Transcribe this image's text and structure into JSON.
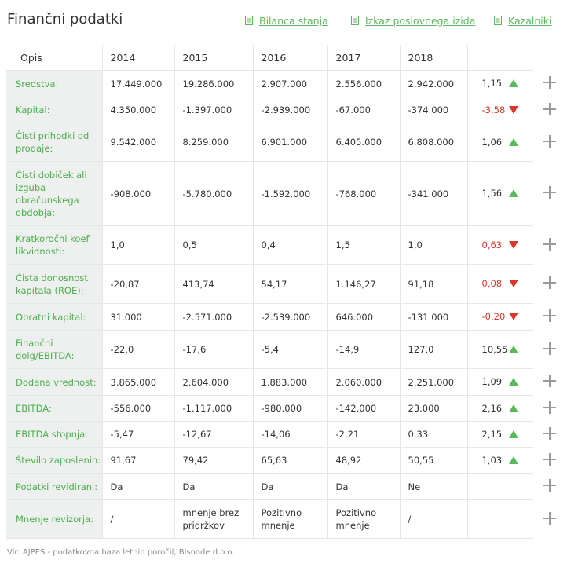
{
  "header": {
    "title": "Finančni podatki",
    "links": [
      {
        "label": "Bilanca stanja",
        "icon": "document-icon"
      },
      {
        "label": "Izkaz poslovnega izida",
        "icon": "document-icon"
      },
      {
        "label": "Kazalniki",
        "icon": "document-icon"
      }
    ]
  },
  "colors": {
    "accent": "#5cb85c",
    "negative": "#d9372b",
    "label_bg": "#eef0ef"
  },
  "table": {
    "columns": [
      "Opis",
      "2014",
      "2015",
      "2016",
      "2017",
      "2018"
    ],
    "rows": [
      {
        "label": "Sredstva:",
        "values": [
          "17.449.000",
          "19.286.000",
          "2.907.000",
          "2.556.000",
          "2.942.000"
        ],
        "index": "1,15",
        "trend": "up"
      },
      {
        "label": "Kapital:",
        "values": [
          "4.350.000",
          "-1.397.000",
          "-2.939.000",
          "-67.000",
          "-374.000"
        ],
        "index": "-3,58",
        "trend": "down"
      },
      {
        "label": "Čisti prihodki od prodaje:",
        "values": [
          "9.542.000",
          "8.259.000",
          "6.901.000",
          "6.405.000",
          "6.808.000"
        ],
        "index": "1,06",
        "trend": "up"
      },
      {
        "label": "Čisti dobiček ali izguba obračunskega obdobja:",
        "values": [
          "-908.000",
          "-5.780.000",
          "-1.592.000",
          "-768.000",
          "-341.000"
        ],
        "index": "1,56",
        "trend": "up"
      },
      {
        "label": "Kratkoročni koef. likvidnosti:",
        "values": [
          "1,0",
          "0,5",
          "0,4",
          "1,5",
          "1,0"
        ],
        "index": "0,63",
        "trend": "down"
      },
      {
        "label": "Čista donosnost kapitala (ROE):",
        "values": [
          "-20,87",
          "413,74",
          "54,17",
          "1.146,27",
          "91,18"
        ],
        "index": "0,08",
        "trend": "down"
      },
      {
        "label": "Obratni kapital:",
        "values": [
          "31.000",
          "-2.571.000",
          "-2.539.000",
          "646.000",
          "-131.000"
        ],
        "index": "-0,20",
        "trend": "down"
      },
      {
        "label": "Finančni dolg/EBITDA:",
        "values": [
          "-22,0",
          "-17,6",
          "-5,4",
          "-14,9",
          "127,0"
        ],
        "index": "10,55",
        "trend": "up"
      },
      {
        "label": "Dodana vrednost:",
        "values": [
          "3.865.000",
          "2.604.000",
          "1.883.000",
          "2.060.000",
          "2.251.000"
        ],
        "index": "1,09",
        "trend": "up"
      },
      {
        "label": "EBITDA:",
        "values": [
          "-556.000",
          "-1.117.000",
          "-980.000",
          "-142.000",
          "23.000"
        ],
        "index": "2,16",
        "trend": "up"
      },
      {
        "label": "EBITDA stopnja:",
        "values": [
          "-5,47",
          "-12,67",
          "-14,06",
          "-2,21",
          "0,33"
        ],
        "index": "2,15",
        "trend": "up"
      },
      {
        "label": "Število zaposlenih:",
        "values": [
          "91,67",
          "79,42",
          "65,63",
          "48,92",
          "50,55"
        ],
        "index": "1,03",
        "trend": "up"
      },
      {
        "label": "Podatki revidirani:",
        "values": [
          "Da",
          "Da",
          "Da",
          "Da",
          "Ne"
        ],
        "index": "",
        "trend": ""
      },
      {
        "label": "Mnenje revizorja:",
        "values": [
          "/",
          "mnenje brez pridržkov",
          "Pozitivno mnenje",
          "Pozitivno mnenje",
          "/"
        ],
        "index": "",
        "trend": ""
      }
    ]
  },
  "footer": {
    "source": "Vir: AJPES - podatkovna baza letnih poročil, Bisnode d.o.o."
  }
}
